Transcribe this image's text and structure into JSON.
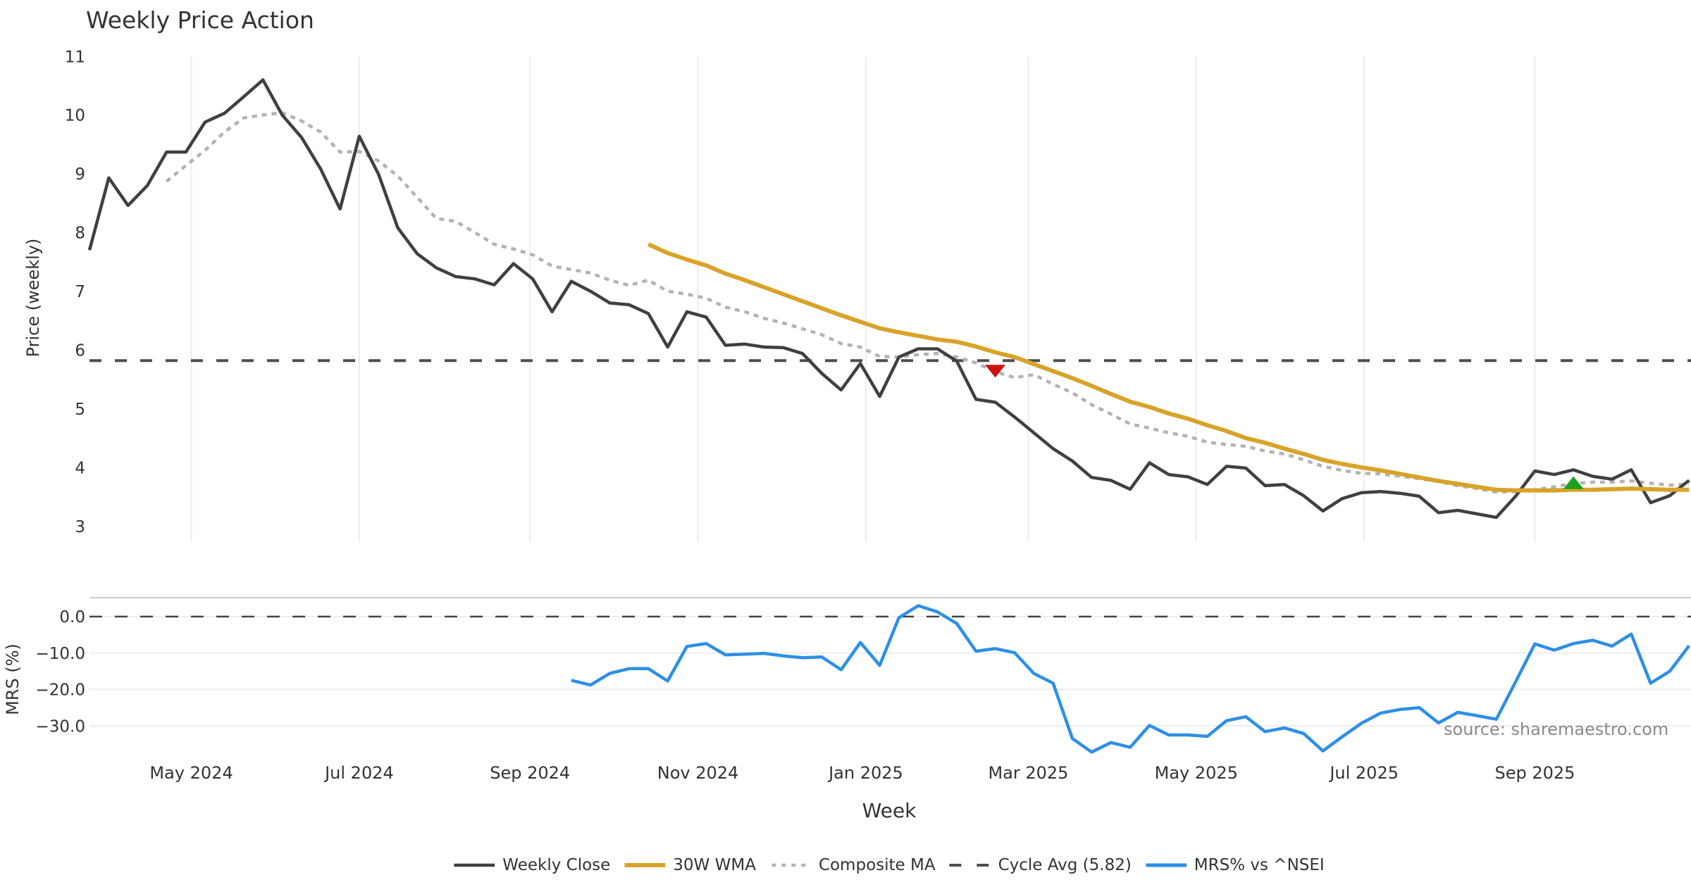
{
  "chart_data": [
    {
      "type": "line",
      "panel": "price",
      "title": "Weekly Price Action",
      "xlabel": "",
      "ylabel": "Price (weekly)",
      "ylim": [
        2.73,
        11.0
      ],
      "xlim_weeks": [
        0,
        83.1
      ],
      "y_ticks": [
        3,
        4,
        5,
        6,
        7,
        8,
        9,
        10,
        11
      ],
      "grid": "vertical-only",
      "x_start": "2024-03-25",
      "x_step_days": 7,
      "series": [
        {
          "name": "Weekly Close",
          "color": "#404040",
          "style": "solid",
          "values": [
            7.7,
            8.93,
            8.46,
            8.8,
            9.37,
            9.37,
            9.88,
            10.03,
            10.31,
            10.6,
            10.0,
            9.62,
            9.08,
            8.4,
            9.64,
            8.99,
            8.08,
            7.64,
            7.4,
            7.25,
            7.21,
            7.11,
            7.47,
            7.21,
            6.65,
            7.17,
            7.0,
            6.8,
            6.77,
            6.62,
            6.05,
            6.65,
            6.56,
            6.08,
            6.1,
            6.05,
            6.04,
            5.94,
            5.6,
            5.32,
            5.77,
            5.21,
            5.88,
            6.02,
            6.02,
            5.81,
            5.16,
            5.11,
            4.86,
            4.59,
            4.32,
            4.11,
            3.83,
            3.78,
            3.63,
            4.08,
            3.88,
            3.84,
            3.71,
            4.02,
            3.99,
            3.69,
            3.71,
            3.52,
            3.26,
            3.47,
            3.57,
            3.59,
            3.56,
            3.51,
            3.23,
            3.27,
            3.21,
            3.15,
            3.51,
            3.94,
            3.88,
            3.96,
            3.85,
            3.8,
            3.96,
            3.4,
            3.52,
            3.78
          ]
        },
        {
          "name": "30W WMA",
          "color": "#d9a32a",
          "style": "solid",
          "values": [
            null,
            null,
            null,
            null,
            null,
            null,
            null,
            null,
            null,
            null,
            null,
            null,
            null,
            null,
            null,
            null,
            null,
            null,
            null,
            null,
            null,
            null,
            null,
            null,
            null,
            null,
            null,
            null,
            null,
            7.8,
            7.65,
            7.54,
            7.44,
            7.3,
            7.19,
            7.07,
            6.95,
            6.83,
            6.71,
            6.59,
            6.48,
            6.37,
            6.3,
            6.24,
            6.18,
            6.14,
            6.06,
            5.96,
            5.88,
            5.76,
            5.64,
            5.52,
            5.39,
            5.25,
            5.12,
            5.03,
            4.92,
            4.83,
            4.72,
            4.62,
            4.5,
            4.42,
            4.32,
            4.23,
            4.13,
            4.06,
            4.0,
            3.95,
            3.89,
            3.83,
            3.77,
            3.72,
            3.67,
            3.62,
            3.61,
            3.61,
            3.61,
            3.62,
            3.62,
            3.63,
            3.64,
            3.63,
            3.62,
            3.62
          ]
        },
        {
          "name": "Composite MA",
          "color": "#b3b3b3",
          "style": "dotted",
          "values": [
            null,
            null,
            null,
            null,
            8.87,
            9.14,
            9.4,
            9.71,
            9.95,
            10.0,
            10.04,
            9.9,
            9.71,
            9.37,
            9.38,
            9.22,
            8.96,
            8.6,
            8.24,
            8.19,
            8.0,
            7.8,
            7.72,
            7.62,
            7.43,
            7.37,
            7.31,
            7.19,
            7.1,
            7.19,
            7.0,
            6.95,
            6.88,
            6.73,
            6.65,
            6.54,
            6.46,
            6.36,
            6.26,
            6.11,
            6.05,
            5.89,
            5.88,
            5.92,
            5.94,
            5.88,
            5.78,
            5.63,
            5.53,
            5.58,
            5.42,
            5.27,
            5.07,
            4.91,
            4.74,
            4.67,
            4.59,
            4.53,
            4.43,
            4.39,
            4.36,
            4.28,
            4.23,
            4.13,
            4.02,
            3.95,
            3.9,
            3.89,
            3.85,
            3.81,
            3.76,
            3.69,
            3.64,
            3.58,
            3.59,
            3.62,
            3.67,
            3.73,
            3.75,
            3.75,
            3.77,
            3.73,
            3.7,
            3.72
          ]
        }
      ],
      "hlines": [
        {
          "name": "Cycle Avg (5.82)",
          "value": 5.82,
          "color": "#4d4d4d",
          "style": "dashed"
        }
      ],
      "markers": [
        {
          "symbol": "triangle-down",
          "week_index": 47,
          "value": 5.64,
          "color": "#cc1111"
        },
        {
          "symbol": "triangle-up",
          "week_index": 77,
          "value": 3.74,
          "color": "#1aa31a"
        }
      ],
      "legend": {
        "position": "bottom-center",
        "items": [
          {
            "label": "Weekly Close",
            "style": "solid"
          },
          {
            "label": "30W WMA",
            "style": "solid"
          },
          {
            "label": "Composite MA",
            "style": "dotted"
          },
          {
            "label": "Cycle Avg (5.82)",
            "style": "dashed"
          },
          {
            "label": "MRS% vs ^NSEI",
            "style": "solid"
          }
        ]
      }
    },
    {
      "type": "line",
      "panel": "mrs",
      "xlabel": "Week",
      "ylabel": "MRS (%)",
      "ylim": [
        -38.5,
        5.2
      ],
      "xlim_weeks": [
        0,
        83.1
      ],
      "y_ticks": [
        0,
        -10,
        -20,
        -30
      ],
      "y_tick_labels": [
        "0.0",
        "−10.0",
        "−20.0",
        "−30.0"
      ],
      "grid": "horizontal-only",
      "x_start": "2024-03-25",
      "x_step_days": 7,
      "x_ticks": [
        {
          "date": "2024-05-01",
          "label": "May 2024"
        },
        {
          "date": "2024-07-01",
          "label": "Jul 2024"
        },
        {
          "date": "2024-09-01",
          "label": "Sep 2024"
        },
        {
          "date": "2024-11-01",
          "label": "Nov 2024"
        },
        {
          "date": "2025-01-01",
          "label": "Jan 2025"
        },
        {
          "date": "2025-03-01",
          "label": "Mar 2025"
        },
        {
          "date": "2025-05-01",
          "label": "May 2025"
        },
        {
          "date": "2025-07-01",
          "label": "Jul 2025"
        },
        {
          "date": "2025-09-01",
          "label": "Sep 2025"
        }
      ],
      "series": [
        {
          "name": "MRS% vs ^NSEI",
          "color": "#2e8fe6",
          "style": "solid",
          "values": [
            null,
            null,
            null,
            null,
            null,
            null,
            null,
            null,
            null,
            null,
            null,
            null,
            null,
            null,
            null,
            null,
            null,
            null,
            null,
            null,
            null,
            null,
            null,
            null,
            null,
            -17.5,
            -18.8,
            -15.6,
            -14.3,
            -14.3,
            -17.7,
            -8.2,
            -7.4,
            -10.5,
            -10.3,
            -10.1,
            -10.8,
            -11.3,
            -11.1,
            -14.6,
            -7.1,
            -13.4,
            -0.3,
            3.0,
            1.3,
            -1.9,
            -9.5,
            -8.8,
            -9.9,
            -15.6,
            -18.3,
            -33.5,
            -37.2,
            -34.6,
            -35.9,
            -29.9,
            -32.5,
            -32.5,
            -32.9,
            -28.6,
            -27.5,
            -31.6,
            -30.6,
            -32.1,
            -36.9,
            -33.0,
            -29.3,
            -26.5,
            -25.5,
            -25.0,
            -29.2,
            -26.3,
            -27.2,
            -28.2,
            -17.9,
            -7.5,
            -9.2,
            -7.4,
            -6.5,
            -8.1,
            -4.8,
            -18.3,
            -15.0,
            -8.0
          ]
        }
      ],
      "hlines": [
        {
          "name": "zero",
          "value": 0,
          "color": "#444444",
          "style": "dashed"
        }
      ],
      "annotations": [
        "source: sharemaestro.com"
      ]
    }
  ]
}
